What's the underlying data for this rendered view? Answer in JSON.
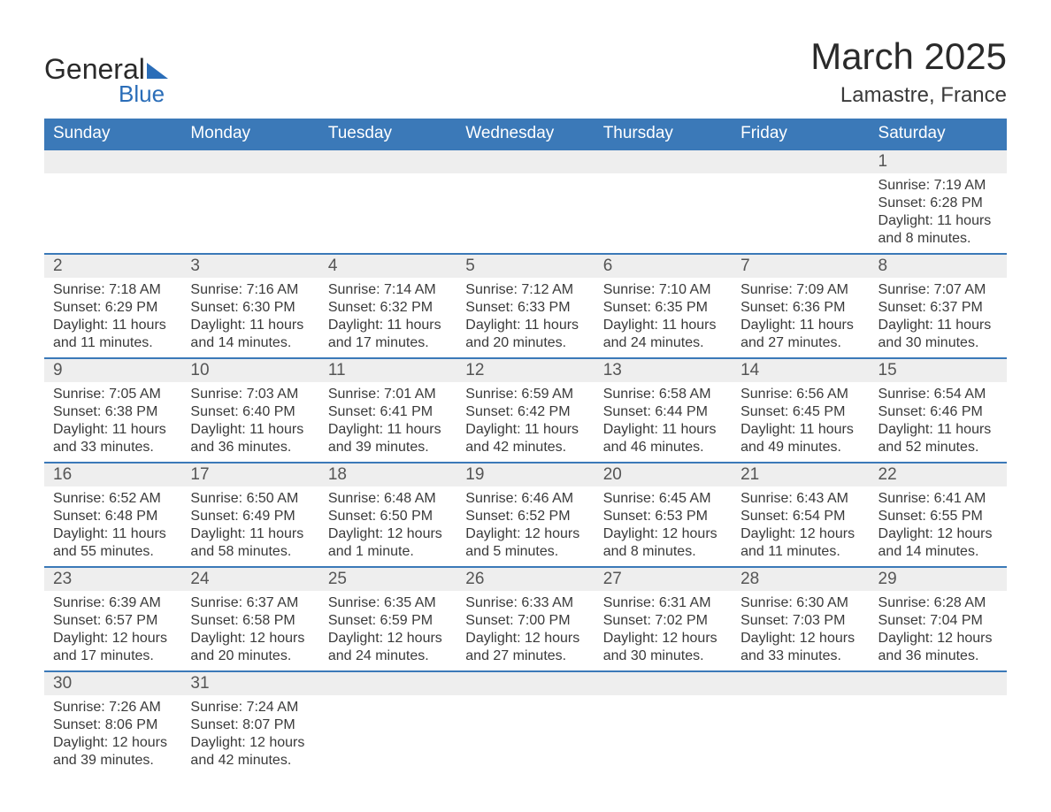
{
  "brand": {
    "general": "General",
    "blue": "Blue"
  },
  "title": "March 2025",
  "location": "Lamastre, France",
  "colors": {
    "header_bg": "#3b79b8",
    "header_text": "#ffffff",
    "daynum_bg": "#eeeeee",
    "row_border": "#3b79b8",
    "body_text": "#3a3a3a",
    "brand_blue": "#2a6db8"
  },
  "columns": [
    "Sunday",
    "Monday",
    "Tuesday",
    "Wednesday",
    "Thursday",
    "Friday",
    "Saturday"
  ],
  "weeks": [
    {
      "nums": [
        "",
        "",
        "",
        "",
        "",
        "",
        "1"
      ],
      "cells": [
        null,
        null,
        null,
        null,
        null,
        null,
        {
          "sunrise": "Sunrise: 7:19 AM",
          "sunset": "Sunset: 6:28 PM",
          "day1": "Daylight: 11 hours",
          "day2": "and 8 minutes."
        }
      ]
    },
    {
      "nums": [
        "2",
        "3",
        "4",
        "5",
        "6",
        "7",
        "8"
      ],
      "cells": [
        {
          "sunrise": "Sunrise: 7:18 AM",
          "sunset": "Sunset: 6:29 PM",
          "day1": "Daylight: 11 hours",
          "day2": "and 11 minutes."
        },
        {
          "sunrise": "Sunrise: 7:16 AM",
          "sunset": "Sunset: 6:30 PM",
          "day1": "Daylight: 11 hours",
          "day2": "and 14 minutes."
        },
        {
          "sunrise": "Sunrise: 7:14 AM",
          "sunset": "Sunset: 6:32 PM",
          "day1": "Daylight: 11 hours",
          "day2": "and 17 minutes."
        },
        {
          "sunrise": "Sunrise: 7:12 AM",
          "sunset": "Sunset: 6:33 PM",
          "day1": "Daylight: 11 hours",
          "day2": "and 20 minutes."
        },
        {
          "sunrise": "Sunrise: 7:10 AM",
          "sunset": "Sunset: 6:35 PM",
          "day1": "Daylight: 11 hours",
          "day2": "and 24 minutes."
        },
        {
          "sunrise": "Sunrise: 7:09 AM",
          "sunset": "Sunset: 6:36 PM",
          "day1": "Daylight: 11 hours",
          "day2": "and 27 minutes."
        },
        {
          "sunrise": "Sunrise: 7:07 AM",
          "sunset": "Sunset: 6:37 PM",
          "day1": "Daylight: 11 hours",
          "day2": "and 30 minutes."
        }
      ]
    },
    {
      "nums": [
        "9",
        "10",
        "11",
        "12",
        "13",
        "14",
        "15"
      ],
      "cells": [
        {
          "sunrise": "Sunrise: 7:05 AM",
          "sunset": "Sunset: 6:38 PM",
          "day1": "Daylight: 11 hours",
          "day2": "and 33 minutes."
        },
        {
          "sunrise": "Sunrise: 7:03 AM",
          "sunset": "Sunset: 6:40 PM",
          "day1": "Daylight: 11 hours",
          "day2": "and 36 minutes."
        },
        {
          "sunrise": "Sunrise: 7:01 AM",
          "sunset": "Sunset: 6:41 PM",
          "day1": "Daylight: 11 hours",
          "day2": "and 39 minutes."
        },
        {
          "sunrise": "Sunrise: 6:59 AM",
          "sunset": "Sunset: 6:42 PM",
          "day1": "Daylight: 11 hours",
          "day2": "and 42 minutes."
        },
        {
          "sunrise": "Sunrise: 6:58 AM",
          "sunset": "Sunset: 6:44 PM",
          "day1": "Daylight: 11 hours",
          "day2": "and 46 minutes."
        },
        {
          "sunrise": "Sunrise: 6:56 AM",
          "sunset": "Sunset: 6:45 PM",
          "day1": "Daylight: 11 hours",
          "day2": "and 49 minutes."
        },
        {
          "sunrise": "Sunrise: 6:54 AM",
          "sunset": "Sunset: 6:46 PM",
          "day1": "Daylight: 11 hours",
          "day2": "and 52 minutes."
        }
      ]
    },
    {
      "nums": [
        "16",
        "17",
        "18",
        "19",
        "20",
        "21",
        "22"
      ],
      "cells": [
        {
          "sunrise": "Sunrise: 6:52 AM",
          "sunset": "Sunset: 6:48 PM",
          "day1": "Daylight: 11 hours",
          "day2": "and 55 minutes."
        },
        {
          "sunrise": "Sunrise: 6:50 AM",
          "sunset": "Sunset: 6:49 PM",
          "day1": "Daylight: 11 hours",
          "day2": "and 58 minutes."
        },
        {
          "sunrise": "Sunrise: 6:48 AM",
          "sunset": "Sunset: 6:50 PM",
          "day1": "Daylight: 12 hours",
          "day2": "and 1 minute."
        },
        {
          "sunrise": "Sunrise: 6:46 AM",
          "sunset": "Sunset: 6:52 PM",
          "day1": "Daylight: 12 hours",
          "day2": "and 5 minutes."
        },
        {
          "sunrise": "Sunrise: 6:45 AM",
          "sunset": "Sunset: 6:53 PM",
          "day1": "Daylight: 12 hours",
          "day2": "and 8 minutes."
        },
        {
          "sunrise": "Sunrise: 6:43 AM",
          "sunset": "Sunset: 6:54 PM",
          "day1": "Daylight: 12 hours",
          "day2": "and 11 minutes."
        },
        {
          "sunrise": "Sunrise: 6:41 AM",
          "sunset": "Sunset: 6:55 PM",
          "day1": "Daylight: 12 hours",
          "day2": "and 14 minutes."
        }
      ]
    },
    {
      "nums": [
        "23",
        "24",
        "25",
        "26",
        "27",
        "28",
        "29"
      ],
      "cells": [
        {
          "sunrise": "Sunrise: 6:39 AM",
          "sunset": "Sunset: 6:57 PM",
          "day1": "Daylight: 12 hours",
          "day2": "and 17 minutes."
        },
        {
          "sunrise": "Sunrise: 6:37 AM",
          "sunset": "Sunset: 6:58 PM",
          "day1": "Daylight: 12 hours",
          "day2": "and 20 minutes."
        },
        {
          "sunrise": "Sunrise: 6:35 AM",
          "sunset": "Sunset: 6:59 PM",
          "day1": "Daylight: 12 hours",
          "day2": "and 24 minutes."
        },
        {
          "sunrise": "Sunrise: 6:33 AM",
          "sunset": "Sunset: 7:00 PM",
          "day1": "Daylight: 12 hours",
          "day2": "and 27 minutes."
        },
        {
          "sunrise": "Sunrise: 6:31 AM",
          "sunset": "Sunset: 7:02 PM",
          "day1": "Daylight: 12 hours",
          "day2": "and 30 minutes."
        },
        {
          "sunrise": "Sunrise: 6:30 AM",
          "sunset": "Sunset: 7:03 PM",
          "day1": "Daylight: 12 hours",
          "day2": "and 33 minutes."
        },
        {
          "sunrise": "Sunrise: 6:28 AM",
          "sunset": "Sunset: 7:04 PM",
          "day1": "Daylight: 12 hours",
          "day2": "and 36 minutes."
        }
      ]
    },
    {
      "nums": [
        "30",
        "31",
        "",
        "",
        "",
        "",
        ""
      ],
      "cells": [
        {
          "sunrise": "Sunrise: 7:26 AM",
          "sunset": "Sunset: 8:06 PM",
          "day1": "Daylight: 12 hours",
          "day2": "and 39 minutes."
        },
        {
          "sunrise": "Sunrise: 7:24 AM",
          "sunset": "Sunset: 8:07 PM",
          "day1": "Daylight: 12 hours",
          "day2": "and 42 minutes."
        },
        null,
        null,
        null,
        null,
        null
      ]
    }
  ]
}
